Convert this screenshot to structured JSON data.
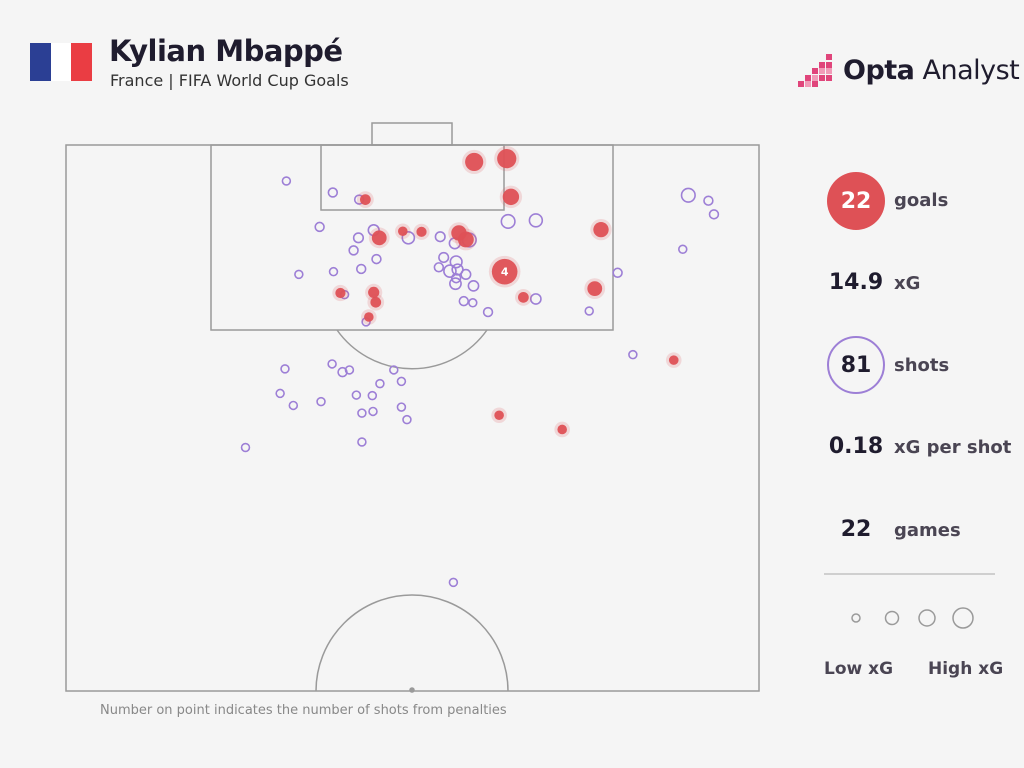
{
  "header": {
    "title": "Kylian Mbappé",
    "subtitle": "France | FIFA World Cup Goals",
    "flag_colors": [
      "#2b3f94",
      "#ffffff",
      "#ea3d43"
    ]
  },
  "logo": {
    "brand": "Opta",
    "product": "Analyst"
  },
  "stats": [
    {
      "value": "22",
      "label": "goals"
    },
    {
      "value": "14.9",
      "label": "xG"
    },
    {
      "value": "81",
      "label": "shots"
    },
    {
      "value": "0.18",
      "label": "xG per shot"
    },
    {
      "value": "22",
      "label": "games"
    }
  ],
  "legend": {
    "low_label": "Low xG",
    "high_label": "High xG"
  },
  "footnote": "Number on point indicates the number of shots from penalties",
  "colors": {
    "goal": "#de5156",
    "shot": "#9d7fd6",
    "pitch_line": "#9a9a9a",
    "background": "#f5f5f5"
  },
  "chart_data": {
    "type": "scatter",
    "title": "Kylian Mbappé",
    "subtitle": "France | FIFA World Cup Goals",
    "xlim": [
      0,
      100
    ],
    "ylim": [
      0,
      100
    ],
    "series": [
      {
        "name": "goals",
        "points": [
          {
            "x": 63.6,
            "y": 97.5,
            "xg": 0.35
          },
          {
            "x": 58.9,
            "y": 96.9,
            "xg": 0.3
          },
          {
            "x": 64.2,
            "y": 90.5,
            "xg": 0.22
          },
          {
            "x": 77.2,
            "y": 84.5,
            "xg": 0.18
          },
          {
            "x": 57.7,
            "y": 82.7,
            "xg": 0.2
          },
          {
            "x": 56.7,
            "y": 83.9,
            "xg": 0.18
          },
          {
            "x": 45.2,
            "y": 83.0,
            "xg": 0.16
          },
          {
            "x": 43.2,
            "y": 90.0,
            "xg": 0.05
          },
          {
            "x": 48.6,
            "y": 84.2,
            "xg": 0.03
          },
          {
            "x": 51.3,
            "y": 84.1,
            "xg": 0.04
          },
          {
            "x": 63.3,
            "y": 76.8,
            "xg": 0.76,
            "label": "4"
          },
          {
            "x": 76.3,
            "y": 73.7,
            "xg": 0.16
          },
          {
            "x": 66.0,
            "y": 72.1,
            "xg": 0.05
          },
          {
            "x": 39.6,
            "y": 72.9,
            "xg": 0.04
          },
          {
            "x": 44.4,
            "y": 73.0,
            "xg": 0.06
          },
          {
            "x": 44.7,
            "y": 71.2,
            "xg": 0.05
          },
          {
            "x": 43.7,
            "y": 68.5,
            "xg": 0.03
          },
          {
            "x": 87.7,
            "y": 60.6,
            "xg": 0.03
          },
          {
            "x": 62.5,
            "y": 50.5,
            "xg": 0.03
          },
          {
            "x": 71.6,
            "y": 47.9,
            "xg": 0.03
          }
        ]
      },
      {
        "name": "shots",
        "points": [
          {
            "x": 31.8,
            "y": 93.4,
            "xg": 0.01
          },
          {
            "x": 38.5,
            "y": 91.3,
            "xg": 0.02
          },
          {
            "x": 42.3,
            "y": 90.0,
            "xg": 0.02
          },
          {
            "x": 89.8,
            "y": 90.8,
            "xg": 0.12
          },
          {
            "x": 92.7,
            "y": 89.8,
            "xg": 0.02
          },
          {
            "x": 93.5,
            "y": 87.3,
            "xg": 0.02
          },
          {
            "x": 63.8,
            "y": 86.0,
            "xg": 0.12
          },
          {
            "x": 67.8,
            "y": 86.2,
            "xg": 0.1
          },
          {
            "x": 36.6,
            "y": 85.0,
            "xg": 0.02
          },
          {
            "x": 44.4,
            "y": 84.4,
            "xg": 0.05
          },
          {
            "x": 42.2,
            "y": 83.0,
            "xg": 0.03
          },
          {
            "x": 49.4,
            "y": 83.0,
            "xg": 0.08
          },
          {
            "x": 54.0,
            "y": 83.2,
            "xg": 0.03
          },
          {
            "x": 58.2,
            "y": 82.6,
            "xg": 0.12
          },
          {
            "x": 56.1,
            "y": 82.0,
            "xg": 0.05
          },
          {
            "x": 41.5,
            "y": 80.7,
            "xg": 0.02
          },
          {
            "x": 44.8,
            "y": 79.1,
            "xg": 0.02
          },
          {
            "x": 54.5,
            "y": 79.4,
            "xg": 0.03
          },
          {
            "x": 56.3,
            "y": 78.6,
            "xg": 0.07
          },
          {
            "x": 53.8,
            "y": 77.6,
            "xg": 0.02
          },
          {
            "x": 56.5,
            "y": 77.2,
            "xg": 0.05
          },
          {
            "x": 55.4,
            "y": 76.9,
            "xg": 0.08
          },
          {
            "x": 42.6,
            "y": 77.3,
            "xg": 0.02
          },
          {
            "x": 33.6,
            "y": 76.3,
            "xg": 0.01
          },
          {
            "x": 38.6,
            "y": 76.8,
            "xg": 0.01
          },
          {
            "x": 57.7,
            "y": 76.3,
            "xg": 0.03
          },
          {
            "x": 56.3,
            "y": 75.6,
            "xg": 0.02
          },
          {
            "x": 79.6,
            "y": 76.6,
            "xg": 0.02
          },
          {
            "x": 56.2,
            "y": 74.6,
            "xg": 0.06
          },
          {
            "x": 58.8,
            "y": 74.2,
            "xg": 0.04
          },
          {
            "x": 89.0,
            "y": 80.9,
            "xg": 0.01
          },
          {
            "x": 40.2,
            "y": 72.6,
            "xg": 0.01
          },
          {
            "x": 57.4,
            "y": 71.4,
            "xg": 0.02
          },
          {
            "x": 58.7,
            "y": 71.1,
            "xg": 0.01
          },
          {
            "x": 67.8,
            "y": 71.8,
            "xg": 0.04
          },
          {
            "x": 60.9,
            "y": 69.4,
            "xg": 0.02
          },
          {
            "x": 75.5,
            "y": 69.6,
            "xg": 0.01
          },
          {
            "x": 43.3,
            "y": 67.6,
            "xg": 0.01
          },
          {
            "x": 81.8,
            "y": 61.6,
            "xg": 0.01
          },
          {
            "x": 31.6,
            "y": 59.0,
            "xg": 0.01
          },
          {
            "x": 38.4,
            "y": 59.9,
            "xg": 0.01
          },
          {
            "x": 39.9,
            "y": 58.4,
            "xg": 0.02
          },
          {
            "x": 40.9,
            "y": 58.8,
            "xg": 0.01
          },
          {
            "x": 47.3,
            "y": 58.8,
            "xg": 0.01
          },
          {
            "x": 45.3,
            "y": 56.3,
            "xg": 0.01
          },
          {
            "x": 48.4,
            "y": 56.7,
            "xg": 0.01
          },
          {
            "x": 30.9,
            "y": 54.5,
            "xg": 0.01
          },
          {
            "x": 41.9,
            "y": 54.2,
            "xg": 0.01
          },
          {
            "x": 32.8,
            "y": 52.3,
            "xg": 0.01
          },
          {
            "x": 36.8,
            "y": 53.0,
            "xg": 0.01
          },
          {
            "x": 44.2,
            "y": 54.1,
            "xg": 0.01
          },
          {
            "x": 48.4,
            "y": 52.0,
            "xg": 0.01
          },
          {
            "x": 42.7,
            "y": 50.9,
            "xg": 0.01
          },
          {
            "x": 44.3,
            "y": 51.2,
            "xg": 0.01
          },
          {
            "x": 49.2,
            "y": 49.7,
            "xg": 0.01
          },
          {
            "x": 25.9,
            "y": 44.6,
            "xg": 0.01
          },
          {
            "x": 42.7,
            "y": 45.6,
            "xg": 0.01
          },
          {
            "x": 55.9,
            "y": 19.9,
            "xg": 0.01
          }
        ]
      }
    ],
    "legend": [
      "Low xG",
      "High xG"
    ],
    "annotation": "Number on point indicates the number of shots from penalties"
  }
}
